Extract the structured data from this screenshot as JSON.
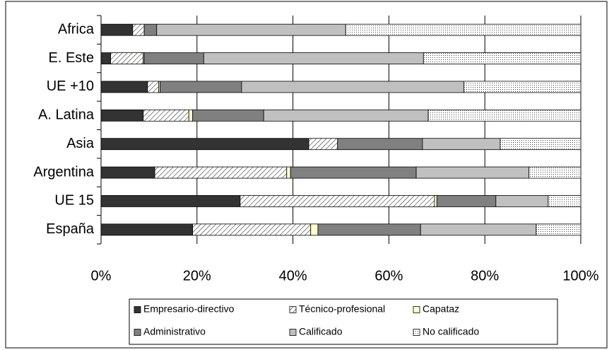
{
  "chart_data": {
    "type": "stacked-barh",
    "categories": [
      "Africa",
      "E. Este",
      "UE +10",
      "A. Latina",
      "Asia",
      "Argentina",
      "UE 15",
      "España"
    ],
    "series": [
      {
        "name": "Empresario-directivo",
        "color": "#333333",
        "values": [
          6.6,
          2,
          9.7,
          8.8,
          43.3,
          11.2,
          29,
          19.1
        ]
      },
      {
        "name": "Técnico-profesional",
        "color": "#ffffff",
        "pattern": "hatch",
        "values": [
          2.4,
          6.8,
          2.3,
          9.5,
          6,
          27.5,
          40.5,
          24.6
        ]
      },
      {
        "name": "Capataz",
        "color": "#ffffcc",
        "values": [
          0,
          0.2,
          0.3,
          0.8,
          0,
          0.8,
          0.5,
          1.5
        ]
      },
      {
        "name": "Administrativo",
        "color": "#808080",
        "values": [
          2.6,
          12.4,
          17,
          14.8,
          17.7,
          26.2,
          12.3,
          21.4
        ]
      },
      {
        "name": "Calificado",
        "color": "#c0c0c0",
        "values": [
          39.4,
          45.8,
          46.3,
          34.3,
          16.2,
          23.5,
          10.9,
          24.1
        ]
      },
      {
        "name": "No calificado",
        "color": "#ffffff",
        "pattern": "dots",
        "values": [
          49,
          32.8,
          24.4,
          31.8,
          16.8,
          10.8,
          6.8,
          9.3
        ]
      }
    ],
    "xlim": [
      0,
      100
    ],
    "xticks": [
      {
        "value": 0,
        "label": "0%"
      },
      {
        "value": 20,
        "label": "20%"
      },
      {
        "value": 40,
        "label": "40%"
      },
      {
        "value": 60,
        "label": "60%"
      },
      {
        "value": 80,
        "label": "80%"
      },
      {
        "value": 100,
        "label": "100%"
      }
    ],
    "grid": true,
    "legend": "bottom"
  }
}
